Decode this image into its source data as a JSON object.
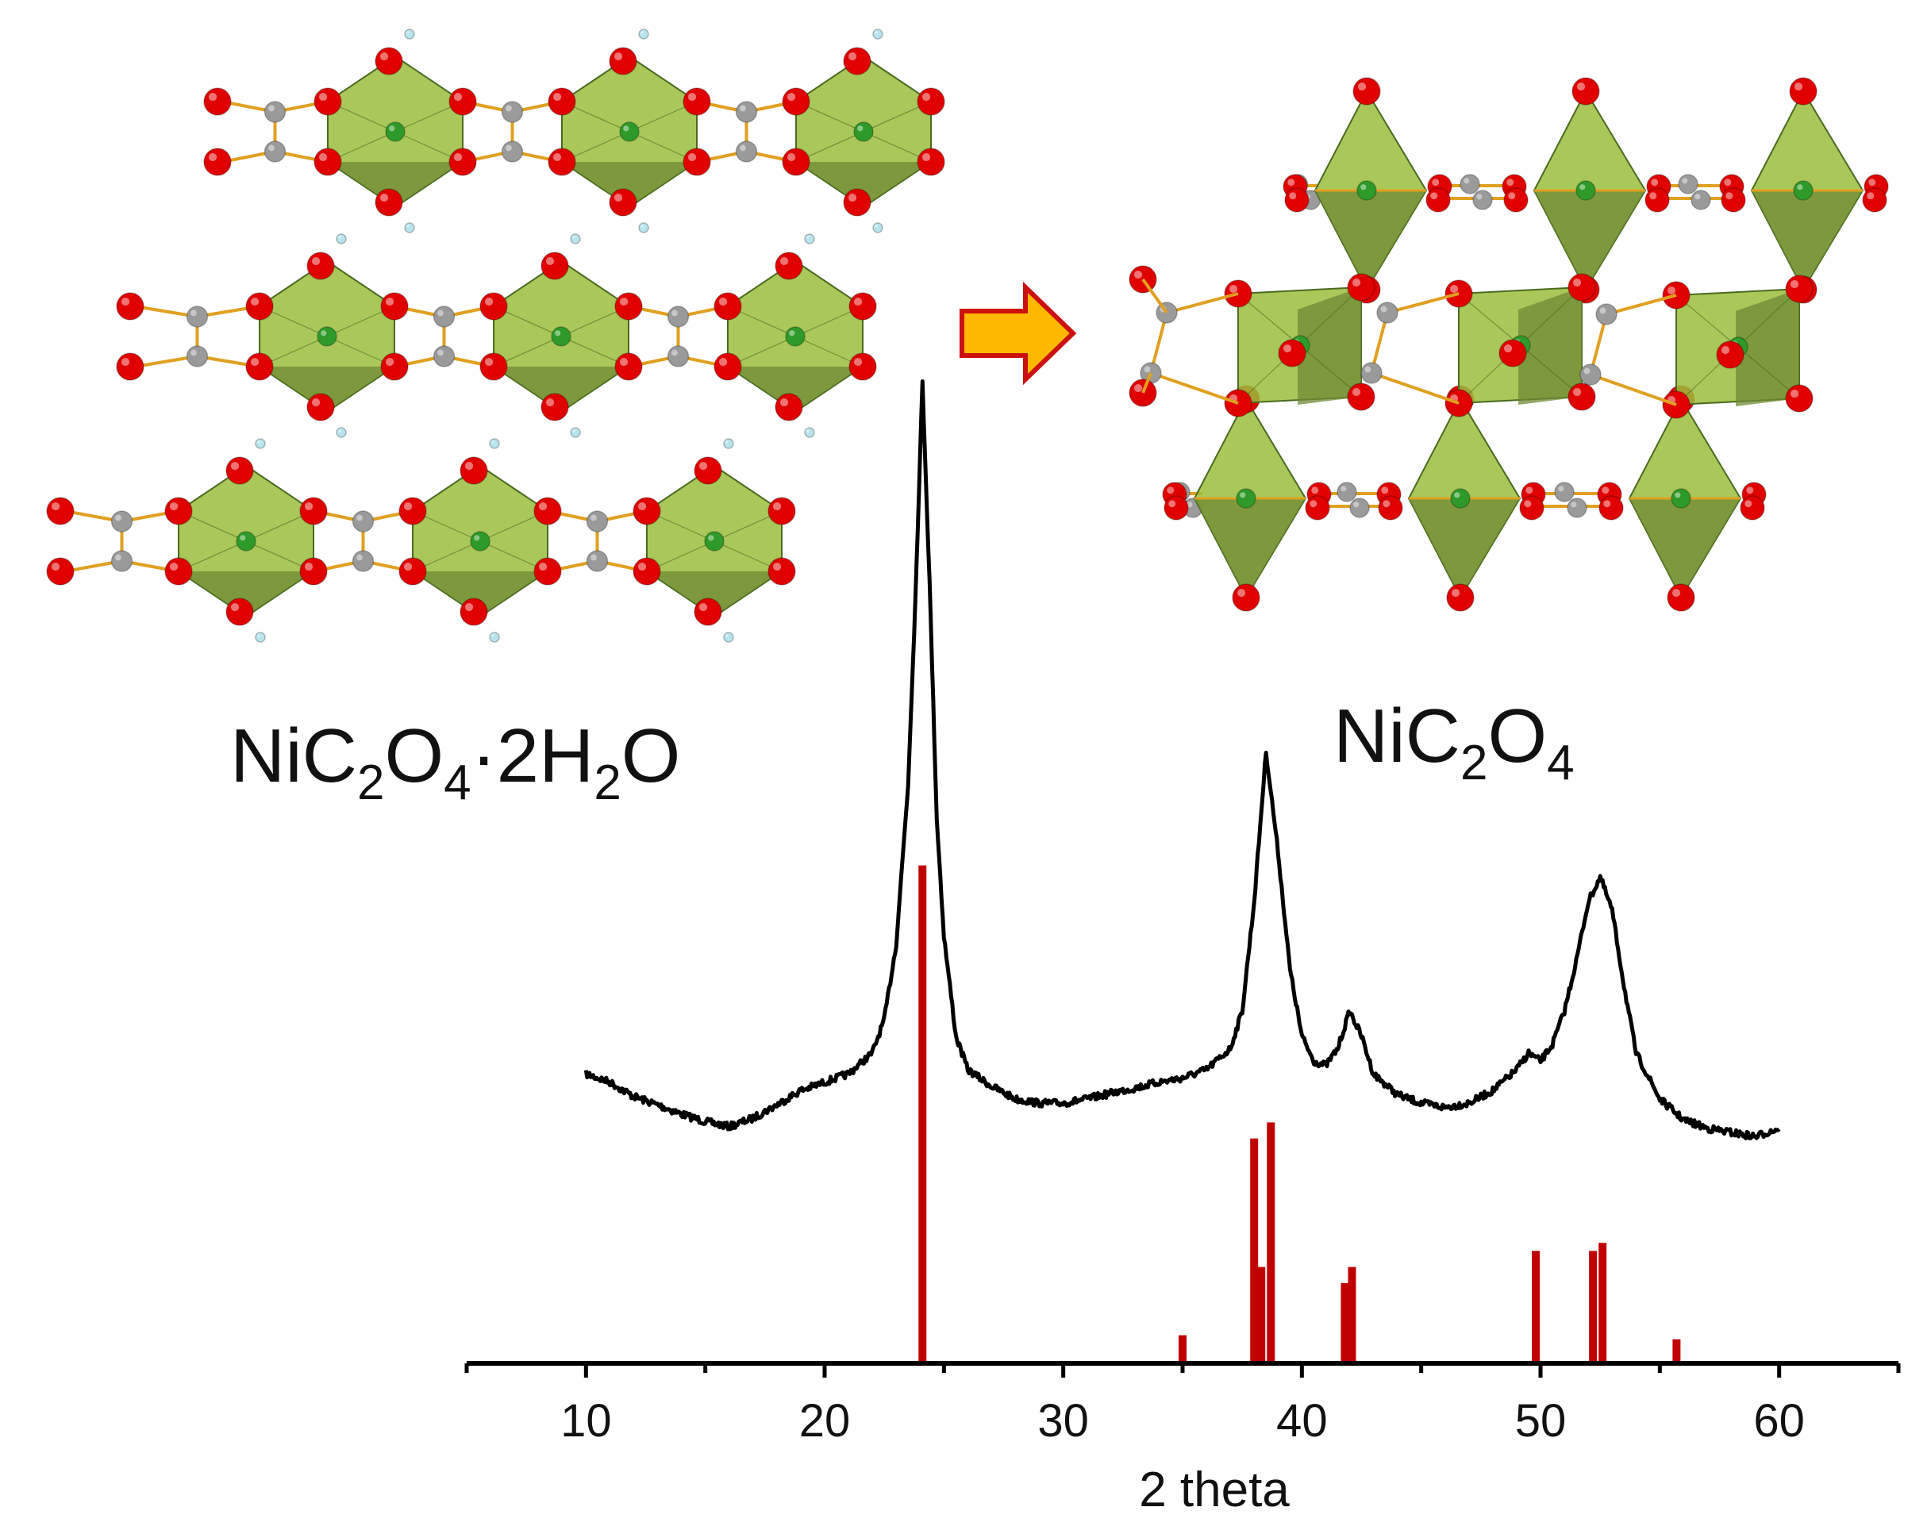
{
  "structures": {
    "left_formula": {
      "base": "NiC",
      "s1": "2",
      "mid": "O",
      "s2": "4",
      "dot": "·2H",
      "s3": "2",
      "tail": "O"
    },
    "right_formula": {
      "base": "NiC",
      "s1": "2",
      "mid": "O",
      "s2": "4"
    },
    "transformation_arrow": "right-arrow-icon",
    "colors": {
      "octahedron": "#9bbd3c",
      "nickel": "#2e9a2a",
      "oxygen": "#e00000",
      "carbon": "#9a9a9a",
      "hydrogen": "#b8e4ee",
      "bond": "#e0a020",
      "arrow_fill": "#ffb800",
      "arrow_stroke": "#cc1010"
    }
  },
  "chart_data": {
    "type": "line",
    "xlabel": "2 theta",
    "ylabel": "",
    "xlim": [
      5,
      65
    ],
    "x_ticks": [
      10,
      20,
      30,
      40,
      50,
      60
    ],
    "x_tick_labels": [
      "10",
      "20",
      "30",
      "40",
      "50",
      "60"
    ],
    "grid": false,
    "legend": "none",
    "colors": {
      "pattern": "#000000",
      "reference": "#c00000"
    },
    "series": [
      {
        "style": "line",
        "x": [
          10,
          11,
          12,
          13,
          14,
          15,
          16,
          17,
          18,
          19,
          20,
          21,
          22,
          22.5,
          23,
          23.5,
          23.8,
          24.1,
          24.4,
          24.7,
          25,
          25.5,
          26,
          27,
          28,
          29,
          30,
          31,
          32,
          33,
          34,
          35,
          36,
          37,
          37.5,
          38,
          38.5,
          39,
          39.5,
          40,
          40.5,
          41,
          41.5,
          42,
          42.5,
          43,
          44,
          45,
          46,
          47,
          48,
          49,
          49.5,
          50,
          50.5,
          51,
          51.5,
          52,
          52.5,
          53,
          53.5,
          54,
          55,
          56,
          57,
          58,
          59,
          60
        ],
        "y": [
          0.175,
          0.165,
          0.148,
          0.138,
          0.127,
          0.118,
          0.112,
          0.122,
          0.138,
          0.155,
          0.165,
          0.175,
          0.2,
          0.24,
          0.33,
          0.52,
          0.74,
          1.0,
          0.76,
          0.48,
          0.34,
          0.22,
          0.18,
          0.16,
          0.145,
          0.14,
          0.14,
          0.145,
          0.152,
          0.158,
          0.165,
          0.17,
          0.18,
          0.205,
          0.25,
          0.38,
          0.56,
          0.44,
          0.3,
          0.22,
          0.19,
          0.185,
          0.205,
          0.25,
          0.22,
          0.175,
          0.15,
          0.14,
          0.135,
          0.14,
          0.155,
          0.18,
          0.2,
          0.19,
          0.21,
          0.25,
          0.31,
          0.38,
          0.41,
          0.37,
          0.28,
          0.2,
          0.145,
          0.12,
          0.11,
          0.105,
          0.1,
          0.11
        ]
      },
      {
        "style": "stick",
        "x": [
          24.1,
          35.0,
          38.0,
          38.3,
          38.7,
          41.8,
          42.1,
          49.8,
          52.2,
          52.6,
          55.7
        ],
        "y": [
          0.62,
          0.035,
          0.28,
          0.12,
          0.3,
          0.1,
          0.12,
          0.14,
          0.14,
          0.15,
          0.03
        ]
      }
    ]
  }
}
